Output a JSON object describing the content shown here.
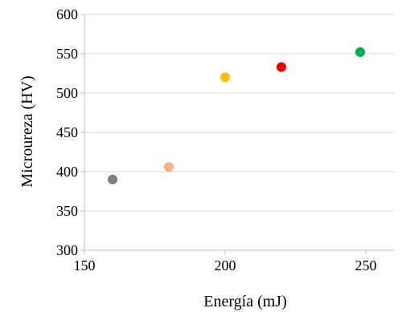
{
  "chart_data": {
    "type": "scatter",
    "xlabel": "Energía (mJ)",
    "ylabel": "Microureza (HV)",
    "xlim": [
      150,
      260
    ],
    "ylim": [
      300,
      600
    ],
    "x_ticks": [
      "150",
      "200",
      "250"
    ],
    "y_ticks": [
      "300",
      "350",
      "400",
      "450",
      "500",
      "550",
      "600"
    ],
    "grid": "horizontal",
    "legend": "none",
    "points": [
      {
        "x": 160,
        "y": 390,
        "color": "#7f7f7f"
      },
      {
        "x": 180,
        "y": 406,
        "color": "#f4b183"
      },
      {
        "x": 200,
        "y": 520,
        "color": "#ffc000"
      },
      {
        "x": 220,
        "y": 533,
        "color": "#ee0000"
      },
      {
        "x": 248,
        "y": 552,
        "color": "#00b050"
      }
    ]
  }
}
